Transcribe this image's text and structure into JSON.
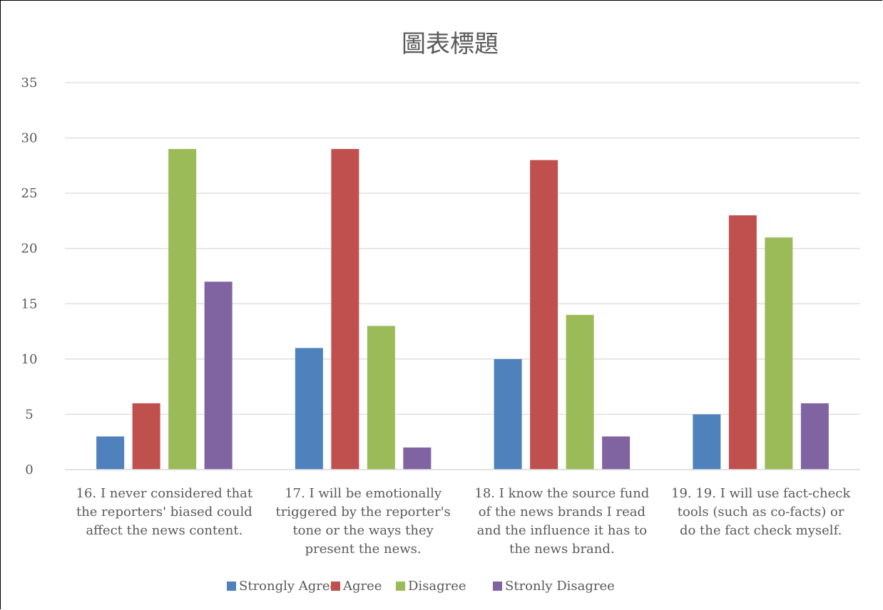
{
  "chart_data": {
    "type": "bar",
    "title": "圖表標題",
    "categories": [
      [
        "16. I never considered that",
        "the reporters' biased could",
        "affect the news content."
      ],
      [
        "17. I will be emotionally",
        "triggered by the reporter's",
        "tone or the ways they",
        "present the news."
      ],
      [
        "18. I know the source fund",
        "of the news brands I read",
        "and the influence it has to",
        "the news brand."
      ],
      [
        "19. 19. I will use fact-check",
        "tools (such as co-facts) or",
        "do the fact check myself."
      ]
    ],
    "series": [
      {
        "name": "Strongly Agree",
        "color": "#4F81BD",
        "values": [
          3,
          11,
          10,
          5
        ]
      },
      {
        "name": "Agree",
        "color": "#C0504D",
        "values": [
          6,
          29,
          28,
          23
        ]
      },
      {
        "name": "Disagree",
        "color": "#9BBB59",
        "values": [
          29,
          13,
          14,
          21
        ]
      },
      {
        "name": "Stronly Disagree",
        "color": "#8064A2",
        "values": [
          17,
          2,
          3,
          6
        ]
      }
    ],
    "ylim": [
      0,
      35
    ],
    "yticks": [
      0,
      5,
      10,
      15,
      20,
      25,
      30,
      35
    ],
    "grid": true,
    "legend_position": "bottom"
  }
}
